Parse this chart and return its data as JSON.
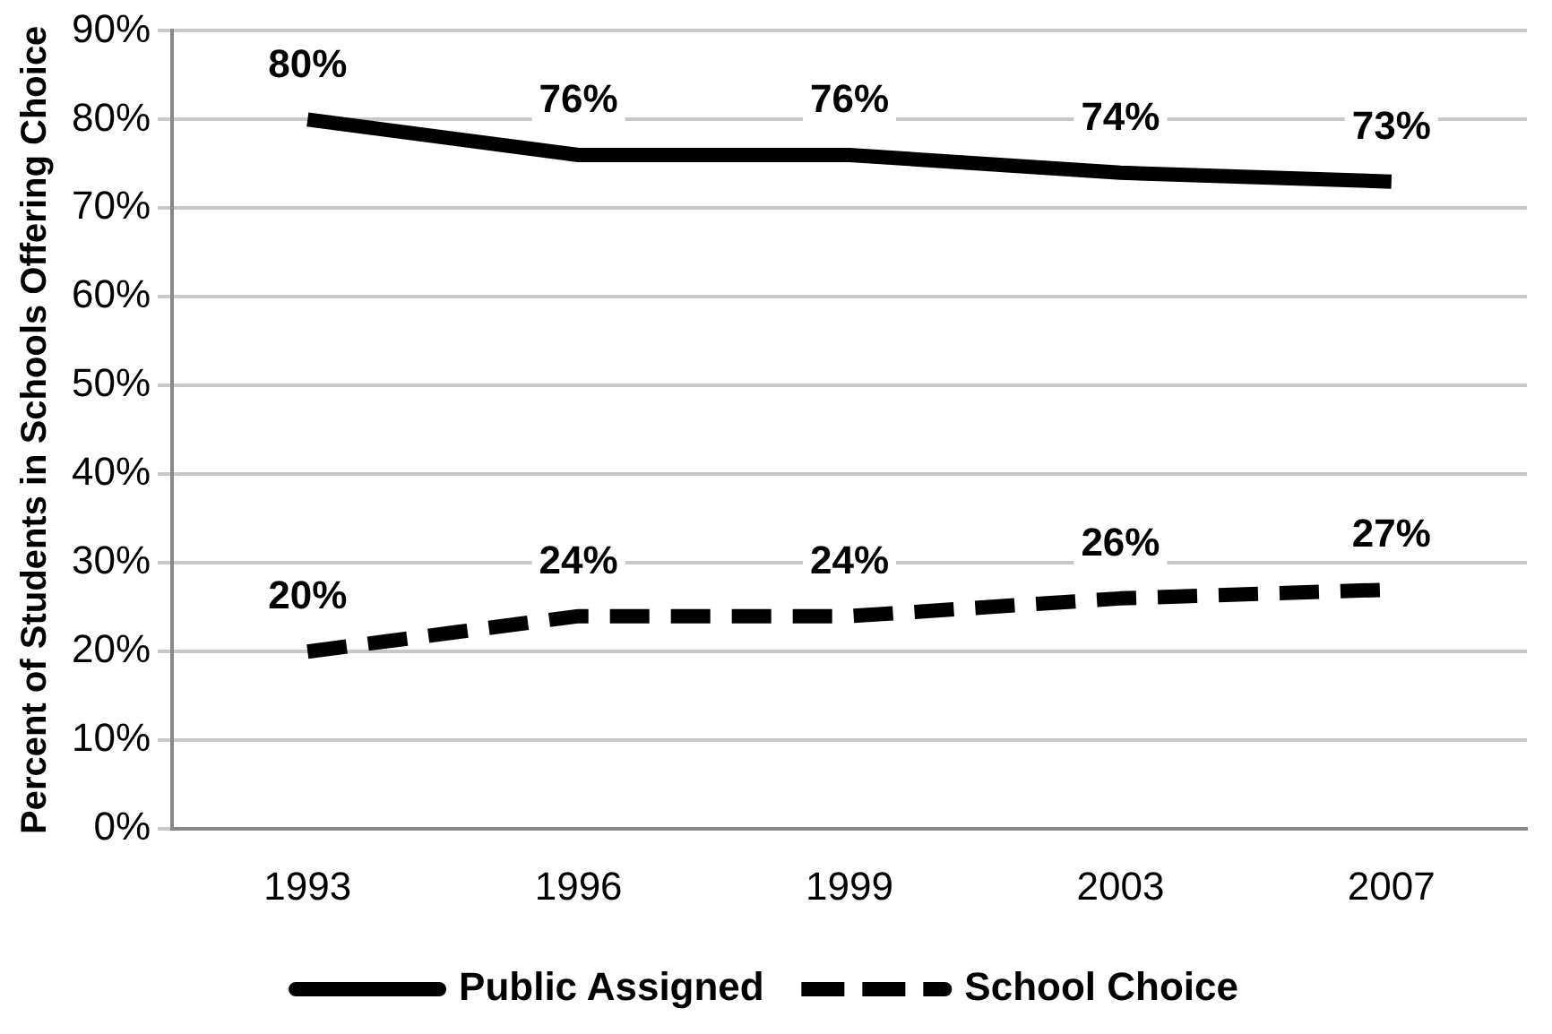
{
  "chart_data": {
    "type": "line",
    "ylabel": "Percent of Students in Schools Offering Choice",
    "categories": [
      "1993",
      "1996",
      "1999",
      "2003",
      "2007"
    ],
    "series": [
      {
        "name": "Public Assigned",
        "color": "#000000",
        "line_style": "solid",
        "values": [
          80,
          76,
          76,
          74,
          73
        ],
        "value_labels": [
          "80%",
          "76%",
          "76%",
          "74%",
          "73%"
        ]
      },
      {
        "name": "School Choice",
        "color": "#000000",
        "line_style": "dashed",
        "values": [
          20,
          24,
          24,
          26,
          27
        ],
        "value_labels": [
          "20%",
          "24%",
          "24%",
          "26%",
          "27%"
        ]
      }
    ],
    "ylim": [
      0,
      90
    ],
    "yticks": [
      {
        "value": 0,
        "label": "0%"
      },
      {
        "value": 10,
        "label": "10%"
      },
      {
        "value": 20,
        "label": "20%"
      },
      {
        "value": 30,
        "label": "30%"
      },
      {
        "value": 40,
        "label": "40%"
      },
      {
        "value": 50,
        "label": "50%"
      },
      {
        "value": 60,
        "label": "60%"
      },
      {
        "value": 70,
        "label": "70%"
      },
      {
        "value": 80,
        "label": "80%"
      },
      {
        "value": 90,
        "label": "90%"
      }
    ],
    "grid": "y",
    "legend": "bottom",
    "marker": "none"
  }
}
